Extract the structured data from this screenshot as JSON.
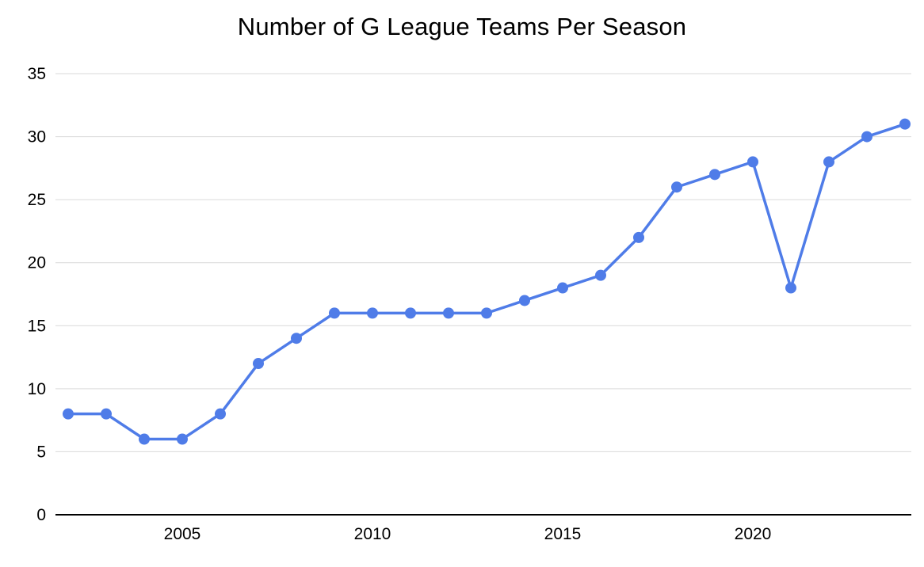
{
  "chart_data": {
    "type": "line",
    "title": "Number of G League Teams Per Season",
    "x": [
      2002,
      2003,
      2004,
      2005,
      2006,
      2007,
      2008,
      2009,
      2010,
      2011,
      2012,
      2013,
      2014,
      2015,
      2016,
      2017,
      2018,
      2019,
      2020,
      2021,
      2022,
      2023,
      2024
    ],
    "values": [
      8,
      8,
      6,
      6,
      8,
      12,
      14,
      16,
      16,
      16,
      16,
      16,
      17,
      18,
      19,
      22,
      26,
      27,
      28,
      18,
      28,
      30,
      31
    ],
    "xlabel": "",
    "ylabel": "",
    "ylim": [
      0,
      35
    ],
    "yticks": [
      0,
      5,
      10,
      15,
      20,
      25,
      30,
      35
    ],
    "xticks": [
      2005,
      2010,
      2015,
      2020
    ],
    "grid": true,
    "legend": "none",
    "line_color": "#4f7ce8",
    "grid_color": "#d9d9d9",
    "axis_color": "#000000",
    "text_color": "#000000",
    "background": "#ffffff"
  }
}
